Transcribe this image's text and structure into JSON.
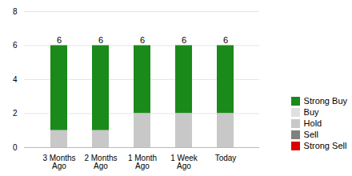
{
  "chart_data": {
    "type": "bar",
    "stacked": true,
    "categories": [
      "3 Months\nAgo",
      "2 Months\nAgo",
      "1 Month\nAgo",
      "1 Week\nAgo",
      "Today"
    ],
    "series": [
      {
        "name": "Strong Buy",
        "color": "#1a8a1a",
        "values": [
          5,
          5,
          4,
          4,
          4
        ]
      },
      {
        "name": "Buy",
        "color": "#e0e0e0",
        "values": [
          0,
          0,
          0,
          0,
          0
        ]
      },
      {
        "name": "Hold",
        "color": "#c8c8c8",
        "values": [
          1,
          1,
          2,
          2,
          2
        ]
      },
      {
        "name": "Sell",
        "color": "#808080",
        "values": [
          0,
          0,
          0,
          0,
          0
        ]
      },
      {
        "name": "Strong Sell",
        "color": "#dd0000",
        "values": [
          0,
          0,
          0,
          0,
          0
        ]
      }
    ],
    "totals": [
      6,
      6,
      6,
      6,
      6
    ],
    "data_labels": true,
    "ylim": [
      0,
      8
    ],
    "yticks": [
      0,
      2,
      4,
      6,
      8
    ],
    "grid": true,
    "legend": "lower right"
  }
}
